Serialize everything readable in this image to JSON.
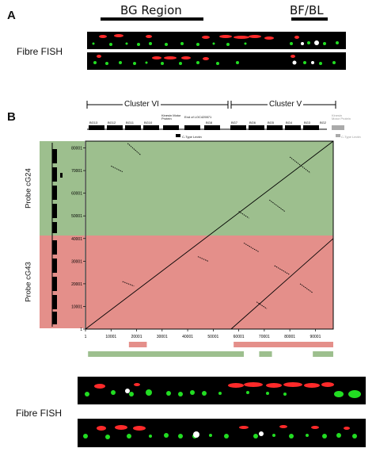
{
  "panel_a": {
    "letter": "A",
    "bg_region_label": "BG Region",
    "bf_bl_label": "BF/BL",
    "fish_label": "Fibre FISH"
  },
  "panel_b": {
    "letter": "B",
    "cluster_vi_label": "Cluster VI",
    "cluster_v_label": "Cluster V",
    "gene_labels": [
      "BG13",
      "BG12",
      "BG11",
      "Kinesin Motor Protein",
      "BG10",
      "End of LOC425571",
      "BG8",
      "BG7",
      "BG6",
      "BG5",
      "BG4",
      "BG3",
      "BG2",
      "Kinesin Motor Protein",
      "C-Type Lectin",
      "C-Type Lectin"
    ],
    "probe_cg24_label": "Probe cG24",
    "probe_cg43_label": "Probe cG43",
    "fish_label": "Fibre FISH",
    "colors": {
      "green_region": "#9dbf8e",
      "red_region": "#e48f8a",
      "fish_red": "#ff2a2a",
      "fish_green": "#22dd22"
    }
  },
  "chart_data": {
    "type": "scatter",
    "title": "",
    "xlabel": "",
    "ylabel": "",
    "x_ticks": [
      "1",
      "10001",
      "20001",
      "30001",
      "40001",
      "50001",
      "60001",
      "70001",
      "80001",
      "90001"
    ],
    "y_ticks": [
      "1",
      "10001",
      "20001",
      "30001",
      "40001",
      "50001",
      "60001",
      "70001",
      "80001"
    ],
    "xlim": [
      1,
      97000
    ],
    "ylim": [
      1,
      83000
    ],
    "diagonals": [
      {
        "x": [
          1,
          97000
        ],
        "y": [
          1,
          83000
        ]
      },
      {
        "x": [
          57000,
          97000
        ],
        "y": [
          1,
          40000
        ]
      }
    ],
    "fragments": [
      {
        "x": [
          16500,
          21500
        ],
        "y": [
          82000,
          77000
        ]
      },
      {
        "x": [
          10000,
          14500
        ],
        "y": [
          72000,
          69500
        ]
      },
      {
        "x": [
          14500,
          19000
        ],
        "y": [
          21000,
          19000
        ]
      },
      {
        "x": [
          60000,
          64000
        ],
        "y": [
          52000,
          49000
        ]
      },
      {
        "x": [
          72000,
          78000
        ],
        "y": [
          57000,
          52000
        ]
      },
      {
        "x": [
          80000,
          88000
        ],
        "y": [
          76000,
          69000
        ]
      },
      {
        "x": [
          62000,
          68000
        ],
        "y": [
          38000,
          34000
        ]
      },
      {
        "x": [
          74000,
          80000
        ],
        "y": [
          28000,
          24000
        ]
      },
      {
        "x": [
          67000,
          71000
        ],
        "y": [
          12000,
          9000
        ]
      },
      {
        "x": [
          84000,
          89000
        ],
        "y": [
          20000,
          16000
        ]
      },
      {
        "x": [
          44000,
          48000
        ],
        "y": [
          32000,
          30000
        ]
      }
    ],
    "x_region_bars": [
      {
        "start": 17000,
        "end": 24000,
        "color": "red"
      },
      {
        "start": 58000,
        "end": 97000,
        "color": "red"
      },
      {
        "start": 1000,
        "end": 62000,
        "color": "green"
      },
      {
        "start": 68000,
        "end": 73000,
        "color": "green"
      },
      {
        "start": 89000,
        "end": 97000,
        "color": "green"
      }
    ]
  }
}
